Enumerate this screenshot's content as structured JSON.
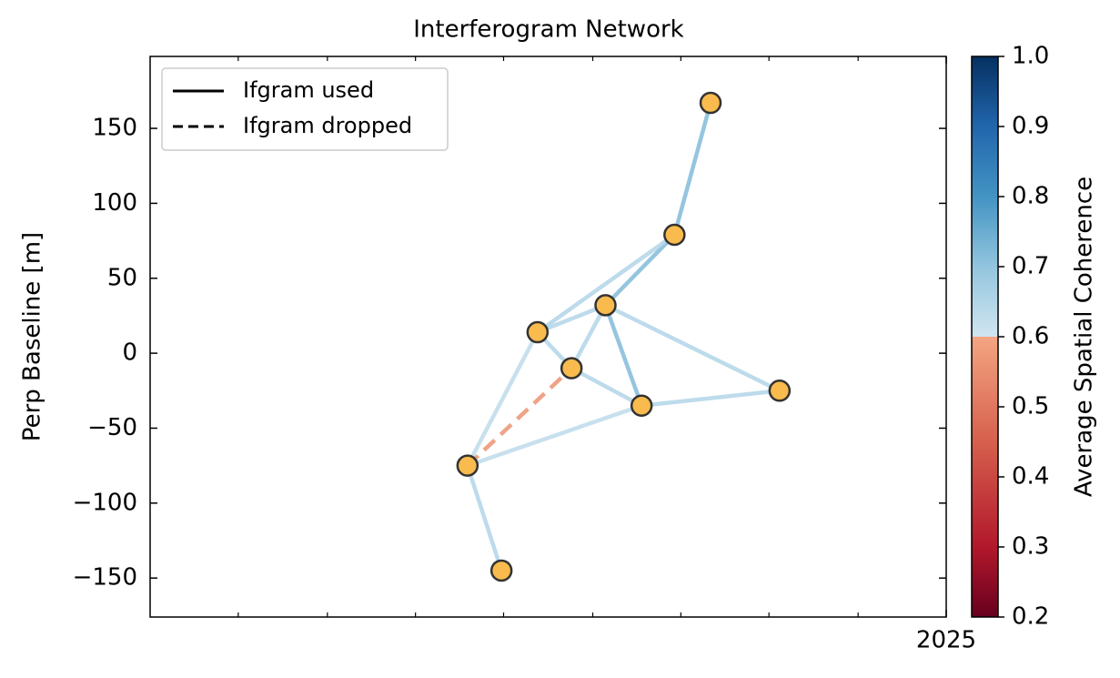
{
  "chart_data": {
    "type": "network",
    "title": "Interferogram Network",
    "ylabel": "Perp Baseline [m]",
    "xlim": [
      2024.25,
      2025
    ],
    "xticks": [
      2025
    ],
    "xminor_ticks": [
      2024.333,
      2024.417,
      2024.5,
      2024.583,
      2024.667,
      2024.75,
      2024.833,
      2024.917
    ],
    "ylim": [
      -176,
      198
    ],
    "yticks": [
      {
        "value": -150,
        "label": "−150"
      },
      {
        "value": -100,
        "label": "−100"
      },
      {
        "value": -50,
        "label": "−50"
      },
      0,
      50,
      100,
      150
    ],
    "nodes": [
      {
        "x": 2024.778,
        "y": 167
      },
      {
        "x": 2024.744,
        "y": 79
      },
      {
        "x": 2024.679,
        "y": 32
      },
      {
        "x": 2024.615,
        "y": 14
      },
      {
        "x": 2024.647,
        "y": -10
      },
      {
        "x": 2024.713,
        "y": -35
      },
      {
        "x": 2024.843,
        "y": -25
      },
      {
        "x": 2024.549,
        "y": -75
      },
      {
        "x": 2024.581,
        "y": -145
      }
    ],
    "node_color": "#f9bb4d",
    "edges": [
      {
        "source": 0,
        "target": 1,
        "coherence": 0.72,
        "used": true
      },
      {
        "source": 1,
        "target": 2,
        "coherence": 0.72,
        "used": true
      },
      {
        "source": 1,
        "target": 3,
        "coherence": 0.65,
        "used": true
      },
      {
        "source": 2,
        "target": 3,
        "coherence": 0.65,
        "used": true
      },
      {
        "source": 2,
        "target": 4,
        "coherence": 0.65,
        "used": true
      },
      {
        "source": 2,
        "target": 5,
        "coherence": 0.72,
        "used": true
      },
      {
        "source": 2,
        "target": 6,
        "coherence": 0.65,
        "used": true
      },
      {
        "source": 3,
        "target": 4,
        "coherence": 0.65,
        "used": true
      },
      {
        "source": 3,
        "target": 7,
        "coherence": 0.63,
        "used": true
      },
      {
        "source": 4,
        "target": 5,
        "coherence": 0.65,
        "used": true
      },
      {
        "source": 5,
        "target": 6,
        "coherence": 0.65,
        "used": true
      },
      {
        "source": 5,
        "target": 7,
        "coherence": 0.63,
        "used": true
      },
      {
        "source": 7,
        "target": 8,
        "coherence": 0.65,
        "used": true
      },
      {
        "source": 7,
        "target": 4,
        "coherence": 0.56,
        "used": false
      }
    ],
    "legend": {
      "loc": "upper left",
      "entries": [
        {
          "label": "Ifgram used",
          "style": "solid"
        },
        {
          "label": "Ifgram dropped",
          "style": "dashed"
        }
      ]
    },
    "colorbar": {
      "label": "Average Spatial Coherence",
      "lim": [
        0.2,
        1
      ],
      "ticks": [
        0.2,
        0.3,
        0.4,
        0.5,
        0.6,
        0.7,
        0.8,
        0.9,
        {
          "value": 1,
          "label": "1.0"
        }
      ],
      "colormap": [
        {
          "value": 0.2,
          "color": "#67001f"
        },
        {
          "value": 0.3,
          "color": "#b2182b"
        },
        {
          "value": 0.45,
          "color": "#d6604d"
        },
        {
          "value": 0.6,
          "color": "#f4a582"
        },
        {
          "value": 0.6,
          "color": "#d1e5f0"
        },
        {
          "value": 0.7,
          "color": "#92c5de"
        },
        {
          "value": 0.8,
          "color": "#4393c3"
        },
        {
          "value": 0.9,
          "color": "#2166ac"
        },
        {
          "value": 1,
          "color": "#053061"
        }
      ]
    }
  }
}
